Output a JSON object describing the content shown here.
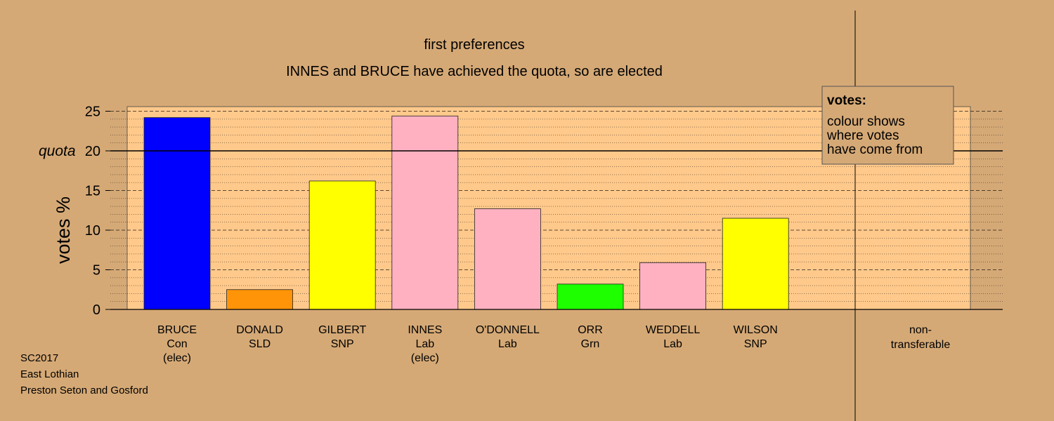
{
  "chart_data": {
    "type": "bar",
    "title": "first preferences",
    "subtitle": "INNES and BRUCE have achieved the quota, so are elected",
    "ylabel": "votes %",
    "ylim": [
      0,
      25
    ],
    "yticks": [
      0,
      5,
      10,
      15,
      20,
      25
    ],
    "quota": 20,
    "quota_label": "quota",
    "categories": [
      {
        "name": "BRUCE",
        "party": "Con",
        "note": "(elec)",
        "value": 24.2,
        "color": "#0000ff"
      },
      {
        "name": "DONALD",
        "party": "SLD",
        "note": "",
        "value": 2.5,
        "color": "#ff9408"
      },
      {
        "name": "GILBERT",
        "party": "SNP",
        "note": "",
        "value": 16.2,
        "color": "#ffff00"
      },
      {
        "name": "INNES",
        "party": "Lab",
        "note": "(elec)",
        "value": 24.4,
        "color": "#ffb1c1"
      },
      {
        "name": "O'DONNELL",
        "party": "Lab",
        "note": "",
        "value": 12.7,
        "color": "#ffb1c1"
      },
      {
        "name": "ORR",
        "party": "Grn",
        "note": "",
        "value": 3.2,
        "color": "#1eff00"
      },
      {
        "name": "WEDDELL",
        "party": "Lab",
        "note": "",
        "value": 5.9,
        "color": "#ffb1c1"
      },
      {
        "name": "WILSON",
        "party": "SNP",
        "note": "",
        "value": 11.5,
        "color": "#ffff00"
      }
    ],
    "nontransferable_label": [
      "non-",
      "transferable"
    ],
    "legend": {
      "title": "votes:",
      "lines": [
        "colour shows",
        "where votes",
        "have come from"
      ]
    },
    "grid": true
  },
  "footer": {
    "lines": [
      "SC2017",
      "East Lothian",
      "Preston Seton and Gosford"
    ]
  }
}
